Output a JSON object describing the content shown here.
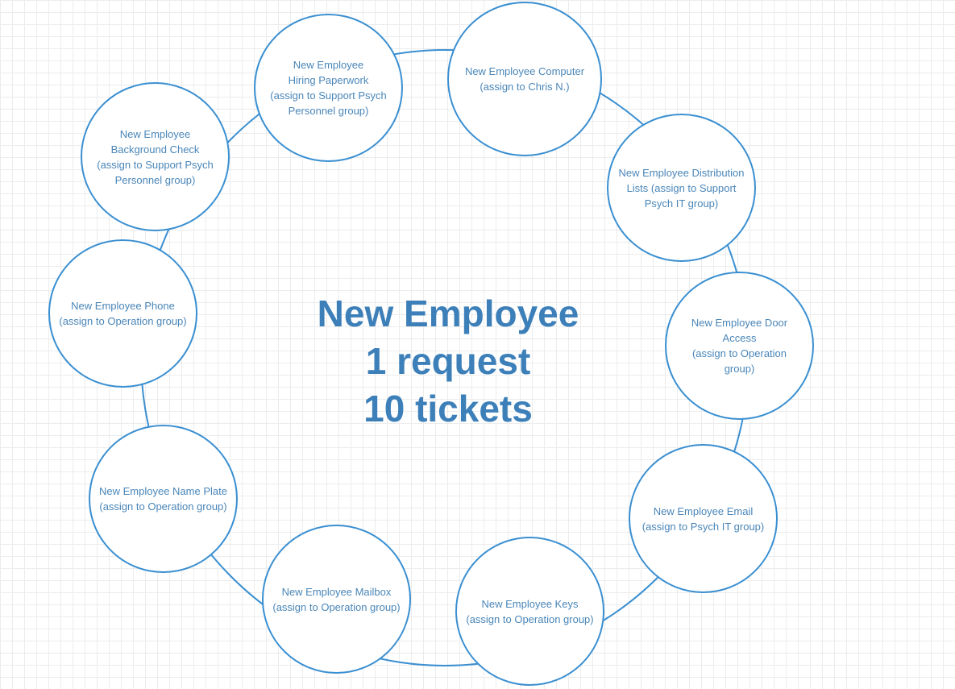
{
  "diagram": {
    "center": {
      "line1": "New Employee",
      "line2": "1 request",
      "line3": "10 tickets"
    },
    "nodes": [
      {
        "id": "computer",
        "label": "New Employee Computer\n(assign to Chris N.)"
      },
      {
        "id": "distribution-lists",
        "label": "New Employee Distribution\nLists (assign to  Support\nPsych IT group)"
      },
      {
        "id": "door-access",
        "label": "New Employee Door\nAccess\n(assign to  Operation\ngroup)"
      },
      {
        "id": "email",
        "label": "New Employee Email\n(assign to Psych IT group)"
      },
      {
        "id": "keys",
        "label": "New Employee Keys\n(assign to Operation group)"
      },
      {
        "id": "mailbox",
        "label": "New Employee Mailbox\n(assign to Operation group)"
      },
      {
        "id": "name-plate",
        "label": "New Employee Name Plate\n(assign to Operation group)"
      },
      {
        "id": "phone",
        "label": "New Employee Phone\n(assign to Operation group)"
      },
      {
        "id": "background-check",
        "label": "New Employee\nBackground Check\n(assign to  Support Psych\nPersonnel group)"
      },
      {
        "id": "hiring-paperwork",
        "label": "New Employee\nHiring Paperwork\n(assign to  Support Psych\nPersonnel group)"
      }
    ],
    "colors": {
      "stroke": "#3a8fd1",
      "text": "#4a86b8",
      "center_text": "#3d80b9",
      "grid": "#ececec"
    }
  }
}
